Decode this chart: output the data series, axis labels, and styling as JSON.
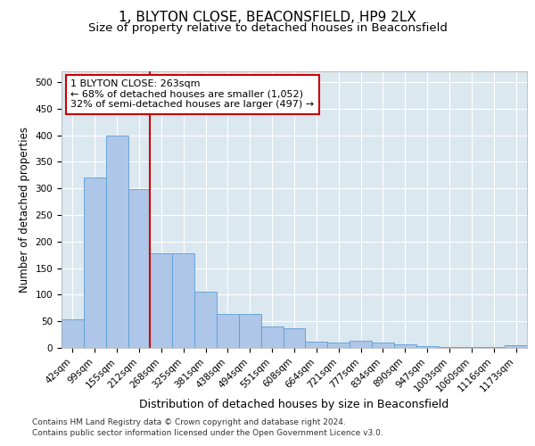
{
  "title1": "1, BLYTON CLOSE, BEACONSFIELD, HP9 2LX",
  "title2": "Size of property relative to detached houses in Beaconsfield",
  "xlabel": "Distribution of detached houses by size in Beaconsfield",
  "ylabel": "Number of detached properties",
  "footnote1": "Contains HM Land Registry data © Crown copyright and database right 2024.",
  "footnote2": "Contains public sector information licensed under the Open Government Licence v3.0.",
  "categories": [
    "42sqm",
    "99sqm",
    "155sqm",
    "212sqm",
    "268sqm",
    "325sqm",
    "381sqm",
    "438sqm",
    "494sqm",
    "551sqm",
    "608sqm",
    "664sqm",
    "721sqm",
    "777sqm",
    "834sqm",
    "890sqm",
    "947sqm",
    "1003sqm",
    "1060sqm",
    "1116sqm",
    "1173sqm"
  ],
  "values": [
    53,
    320,
    400,
    298,
    178,
    178,
    105,
    63,
    63,
    40,
    37,
    12,
    10,
    14,
    10,
    6,
    4,
    2,
    1,
    1,
    5
  ],
  "bar_color": "#aec6e8",
  "bar_edge_color": "#5a9fd4",
  "vline_index": 4,
  "vline_color": "#cc0000",
  "annotation_text": "1 BLYTON CLOSE: 263sqm\n← 68% of detached houses are smaller (1,052)\n32% of semi-detached houses are larger (497) →",
  "annotation_box_color": "#ffffff",
  "annotation_box_edge": "#cc0000",
  "ylim": [
    0,
    520
  ],
  "yticks": [
    0,
    50,
    100,
    150,
    200,
    250,
    300,
    350,
    400,
    450,
    500
  ],
  "plot_bg_color": "#dce8f0",
  "title1_fontsize": 11,
  "title2_fontsize": 9.5,
  "xlabel_fontsize": 9,
  "ylabel_fontsize": 8.5,
  "tick_fontsize": 7.5,
  "annotation_fontsize": 8
}
